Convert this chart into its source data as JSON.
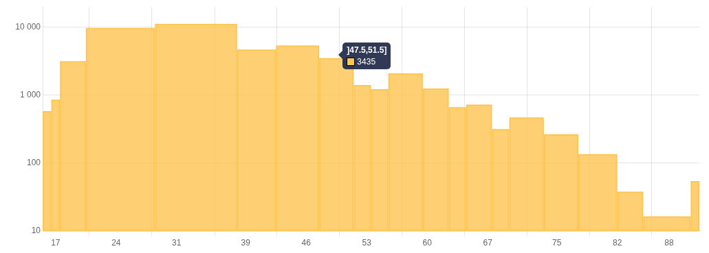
{
  "chart_data": {
    "type": "histogram",
    "color": "#fec654",
    "bins": [
      15.5,
      16.5,
      17.5,
      20.5,
      28.5,
      38,
      42.5,
      47.5,
      51.5,
      53.5,
      55.5,
      59.5,
      62.5,
      64.5,
      67.5,
      69.5,
      73.5,
      77.5,
      82,
      85,
      90.5,
      91.5
    ],
    "values": [
      570,
      840,
      3100,
      9600,
      11000,
      4600,
      5300,
      3435,
      1380,
      1200,
      2050,
      1230,
      650,
      710,
      310,
      460,
      260,
      132,
      37,
      16,
      53
    ],
    "annotations": [
      {
        "text": "]47.5,51.5]",
        "x": 49.5,
        "y": 3435
      },
      "3435"
    ],
    "log": "y",
    "grid": true,
    "xlim": [
      15.5,
      91.5
    ],
    "xticks": [
      17,
      {
        "value": 20.9,
        "label": null
      },
      24,
      {
        "value": 28.1,
        "label": null
      },
      31,
      {
        "value": 35.4,
        "label": null
      },
      39,
      {
        "value": 42.6,
        "label": null
      },
      46,
      {
        "value": 49.8,
        "label": null
      },
      53,
      {
        "value": 57.1,
        "label": null
      },
      60,
      {
        "value": 64.3,
        "label": null
      },
      67,
      {
        "value": 71.6,
        "label": null
      },
      75,
      {
        "value": 78.8,
        "label": null
      },
      82,
      {
        "value": 86.0,
        "label": null
      },
      88
    ],
    "ylim": [
      10,
      20000
    ],
    "yticks": [
      10,
      100,
      {
        "value": 1000,
        "label": "1 000"
      },
      {
        "value": 10000,
        "label": "10 000"
      }
    ]
  }
}
